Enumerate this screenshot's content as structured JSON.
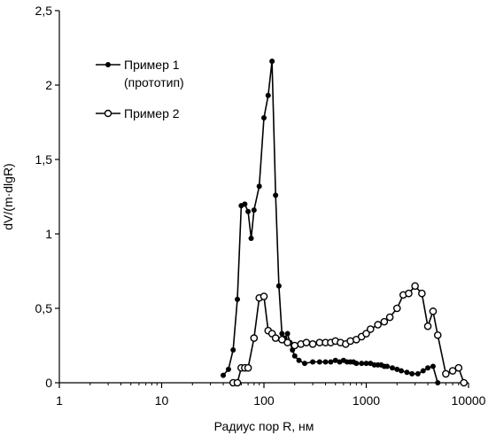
{
  "chart_data": {
    "type": "line",
    "title": "",
    "xlabel": "Радиус пор R, нм",
    "ylabel": "dV/(m·dlgR)",
    "xscale": "log",
    "xlim": [
      1,
      10000
    ],
    "ylim": [
      0,
      2.5
    ],
    "x_ticks": [
      1,
      10,
      100,
      1000,
      10000
    ],
    "x_tick_labels": [
      "1",
      "10",
      "100",
      "1000",
      "10000"
    ],
    "y_ticks": [
      0,
      0.5,
      1,
      1.5,
      2,
      2.5
    ],
    "y_tick_labels": [
      "0",
      "0,5",
      "1",
      "1,5",
      "2",
      "2,5"
    ],
    "grid": false,
    "legend_position": "upper-left",
    "series": [
      {
        "name": "Пример 1",
        "name_line2": "(прототип)",
        "marker": "filled-circle",
        "x": [
          40,
          45,
          50,
          55,
          60,
          65,
          70,
          75,
          80,
          90,
          100,
          110,
          120,
          130,
          140,
          150,
          160,
          170,
          180,
          190,
          200,
          220,
          250,
          300,
          350,
          400,
          450,
          500,
          550,
          600,
          650,
          700,
          750,
          800,
          900,
          1000,
          1100,
          1200,
          1300,
          1400,
          1500,
          1600,
          1800,
          2000,
          2200,
          2500,
          2800,
          3200,
          3600,
          4000,
          4500,
          5000
        ],
        "y": [
          0.05,
          0.09,
          0.22,
          0.56,
          1.19,
          1.2,
          1.15,
          0.97,
          1.16,
          1.32,
          1.78,
          1.93,
          2.16,
          1.26,
          0.65,
          0.33,
          0.3,
          0.33,
          0.27,
          0.22,
          0.18,
          0.15,
          0.13,
          0.14,
          0.14,
          0.14,
          0.14,
          0.15,
          0.14,
          0.15,
          0.14,
          0.14,
          0.14,
          0.13,
          0.13,
          0.13,
          0.13,
          0.12,
          0.12,
          0.12,
          0.11,
          0.11,
          0.1,
          0.09,
          0.08,
          0.07,
          0.06,
          0.06,
          0.08,
          0.1,
          0.11,
          0.0
        ]
      },
      {
        "name": "Пример 2",
        "marker": "open-circle",
        "x": [
          50,
          55,
          60,
          65,
          70,
          80,
          90,
          100,
          110,
          120,
          130,
          150,
          170,
          200,
          230,
          260,
          300,
          350,
          400,
          450,
          500,
          560,
          630,
          700,
          800,
          900,
          1000,
          1100,
          1300,
          1500,
          1700,
          2000,
          2300,
          2600,
          3000,
          3500,
          4000,
          4500,
          5000,
          6000,
          7000,
          8000,
          9000
        ],
        "y": [
          0.0,
          0.0,
          0.1,
          0.1,
          0.1,
          0.3,
          0.57,
          0.58,
          0.35,
          0.33,
          0.3,
          0.29,
          0.27,
          0.25,
          0.26,
          0.27,
          0.26,
          0.27,
          0.27,
          0.27,
          0.28,
          0.27,
          0.26,
          0.28,
          0.29,
          0.31,
          0.33,
          0.36,
          0.39,
          0.41,
          0.44,
          0.5,
          0.59,
          0.6,
          0.65,
          0.6,
          0.38,
          0.48,
          0.32,
          0.06,
          0.08,
          0.1,
          0.0
        ]
      }
    ]
  }
}
